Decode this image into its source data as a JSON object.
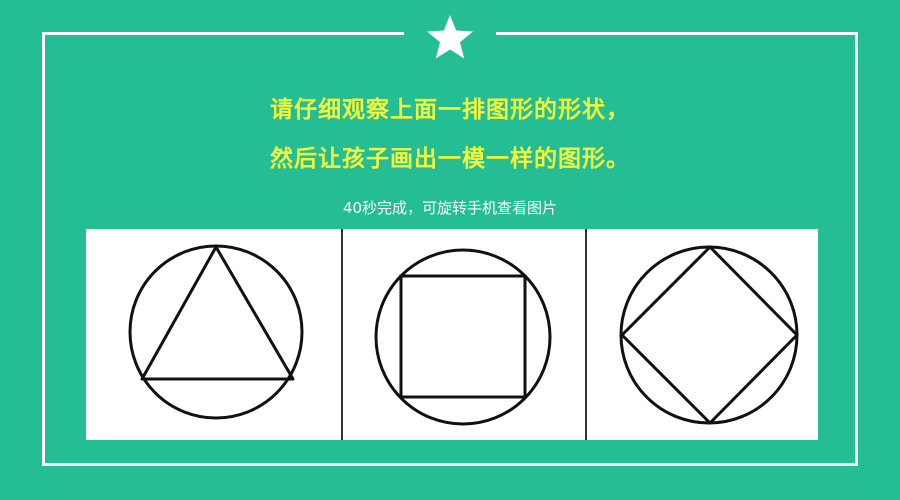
{
  "header": {
    "icon": "star-icon"
  },
  "instructions": {
    "line1": "请仔细观察上面一排图形的形状，",
    "line2": "然后让孩子画出一模一样的图形。"
  },
  "subtitle": "40秒完成，可旋转手机查看图片",
  "figures": [
    {
      "name": "circle-with-inscribed-triangle",
      "shape": "triangle"
    },
    {
      "name": "circle-with-inscribed-square",
      "shape": "square"
    },
    {
      "name": "circle-with-inscribed-diamond",
      "shape": "diamond"
    }
  ],
  "colors": {
    "background": "#25bd93",
    "frame": "#ffffff",
    "heading": "#f2f53a",
    "subtitle": "#ffffff",
    "ink": "#111111"
  }
}
